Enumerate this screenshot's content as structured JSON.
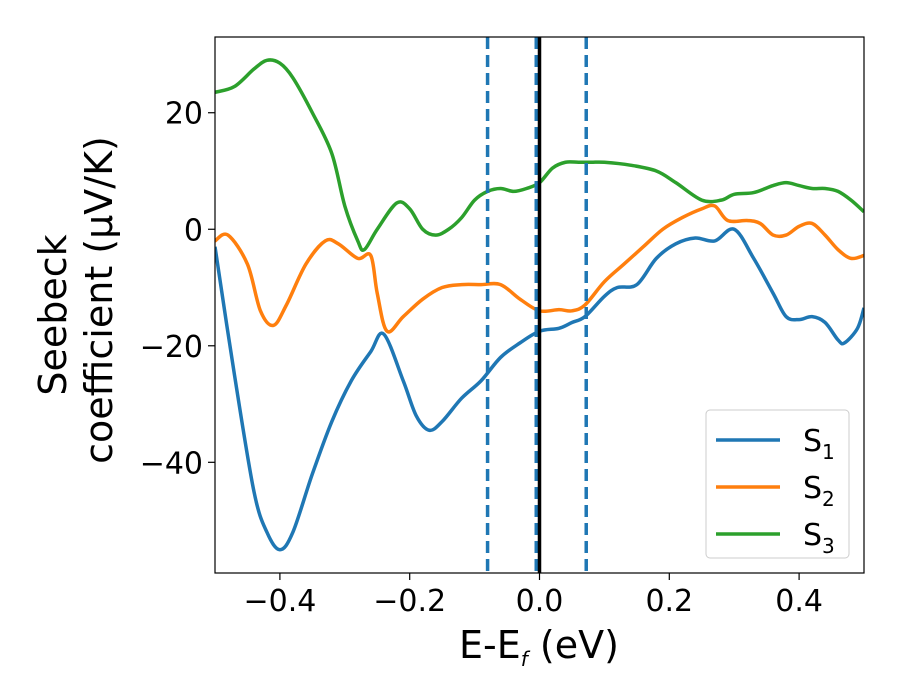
{
  "chart_data": {
    "type": "line",
    "xlabel_main": "E-E",
    "xlabel_sub": "f",
    "xlabel_tail": " (eV)",
    "ylabel_line1": "Seebeck",
    "ylabel_line2": "coefficient  (μV/K)",
    "xlim": [
      -0.5,
      0.5
    ],
    "ylim": [
      -59,
      33
    ],
    "xticks": [
      -0.4,
      -0.2,
      0.0,
      0.2,
      0.4
    ],
    "xtick_labels": [
      "−0.4",
      "−0.2",
      "0.0",
      "0.2",
      "0.4"
    ],
    "yticks": [
      20,
      0,
      -20,
      -40
    ],
    "ytick_labels": [
      "20",
      "0",
      "−20",
      "−40"
    ],
    "vlines": [
      {
        "x": -0.08,
        "style": "dashed",
        "color": "#1f77b4"
      },
      {
        "x": -0.005,
        "style": "dashed",
        "color": "#1f77b4"
      },
      {
        "x": 0.0,
        "style": "solid",
        "color": "#000000"
      },
      {
        "x": 0.072,
        "style": "dashed",
        "color": "#1f77b4"
      }
    ],
    "legend_position": "lower-right",
    "series": [
      {
        "name": "S",
        "sub": "1",
        "color": "#1f77b4",
        "points": [
          [
            -0.5,
            -3
          ],
          [
            -0.47,
            -25
          ],
          [
            -0.44,
            -45
          ],
          [
            -0.42,
            -52
          ],
          [
            -0.4,
            -55
          ],
          [
            -0.38,
            -52
          ],
          [
            -0.35,
            -42
          ],
          [
            -0.32,
            -33
          ],
          [
            -0.29,
            -26
          ],
          [
            -0.26,
            -21
          ],
          [
            -0.24,
            -18
          ],
          [
            -0.21,
            -26
          ],
          [
            -0.19,
            -32
          ],
          [
            -0.17,
            -34.5
          ],
          [
            -0.15,
            -33
          ],
          [
            -0.12,
            -29
          ],
          [
            -0.09,
            -26
          ],
          [
            -0.06,
            -22
          ],
          [
            -0.03,
            -19.5
          ],
          [
            0.0,
            -17.5
          ],
          [
            0.03,
            -17
          ],
          [
            0.05,
            -16
          ],
          [
            0.07,
            -15
          ],
          [
            0.1,
            -11.5
          ],
          [
            0.12,
            -10
          ],
          [
            0.15,
            -9.5
          ],
          [
            0.18,
            -5
          ],
          [
            0.21,
            -2.5
          ],
          [
            0.24,
            -1.5
          ],
          [
            0.27,
            -2
          ],
          [
            0.3,
            0
          ],
          [
            0.33,
            -5
          ],
          [
            0.36,
            -11
          ],
          [
            0.38,
            -15
          ],
          [
            0.4,
            -15.5
          ],
          [
            0.42,
            -15
          ],
          [
            0.44,
            -16
          ],
          [
            0.46,
            -19
          ],
          [
            0.47,
            -19.5
          ],
          [
            0.49,
            -17
          ],
          [
            0.5,
            -13.5
          ]
        ]
      },
      {
        "name": "S",
        "sub": "2",
        "color": "#ff7f0e",
        "points": [
          [
            -0.5,
            -2
          ],
          [
            -0.48,
            -1
          ],
          [
            -0.45,
            -6
          ],
          [
            -0.43,
            -14
          ],
          [
            -0.41,
            -16.5
          ],
          [
            -0.39,
            -13
          ],
          [
            -0.36,
            -6
          ],
          [
            -0.33,
            -2
          ],
          [
            -0.31,
            -2.5
          ],
          [
            -0.28,
            -5
          ],
          [
            -0.26,
            -4.5
          ],
          [
            -0.25,
            -11
          ],
          [
            -0.235,
            -17.5
          ],
          [
            -0.21,
            -15
          ],
          [
            -0.18,
            -12
          ],
          [
            -0.15,
            -10
          ],
          [
            -0.12,
            -9.5
          ],
          [
            -0.09,
            -9.5
          ],
          [
            -0.06,
            -9.5
          ],
          [
            -0.03,
            -12
          ],
          [
            0.0,
            -14
          ],
          [
            0.03,
            -13.8
          ],
          [
            0.05,
            -14
          ],
          [
            0.07,
            -13
          ],
          [
            0.1,
            -9
          ],
          [
            0.13,
            -6
          ],
          [
            0.16,
            -3
          ],
          [
            0.19,
            0
          ],
          [
            0.22,
            2
          ],
          [
            0.25,
            3.5
          ],
          [
            0.27,
            4
          ],
          [
            0.29,
            1.5
          ],
          [
            0.32,
            1.5
          ],
          [
            0.34,
            1
          ],
          [
            0.36,
            -1
          ],
          [
            0.38,
            -1
          ],
          [
            0.4,
            0.5
          ],
          [
            0.42,
            1
          ],
          [
            0.44,
            -1
          ],
          [
            0.46,
            -3.5
          ],
          [
            0.48,
            -5
          ],
          [
            0.5,
            -4.5
          ]
        ]
      },
      {
        "name": "S",
        "sub": "3",
        "color": "#2ca02c",
        "points": [
          [
            -0.5,
            23.5
          ],
          [
            -0.47,
            24.5
          ],
          [
            -0.44,
            27.5
          ],
          [
            -0.42,
            29
          ],
          [
            -0.4,
            28.5
          ],
          [
            -0.38,
            26
          ],
          [
            -0.35,
            20
          ],
          [
            -0.32,
            13
          ],
          [
            -0.3,
            4
          ],
          [
            -0.28,
            -2
          ],
          [
            -0.27,
            -3.5
          ],
          [
            -0.25,
            0
          ],
          [
            -0.22,
            4.5
          ],
          [
            -0.2,
            3.5
          ],
          [
            -0.18,
            0
          ],
          [
            -0.16,
            -1
          ],
          [
            -0.14,
            0
          ],
          [
            -0.12,
            2
          ],
          [
            -0.1,
            5
          ],
          [
            -0.08,
            6.5
          ],
          [
            -0.06,
            7
          ],
          [
            -0.04,
            6.5
          ],
          [
            -0.02,
            7
          ],
          [
            0.0,
            8
          ],
          [
            0.02,
            10.5
          ],
          [
            0.04,
            11.5
          ],
          [
            0.06,
            11.5
          ],
          [
            0.08,
            11.5
          ],
          [
            0.1,
            11.5
          ],
          [
            0.14,
            11
          ],
          [
            0.18,
            10
          ],
          [
            0.21,
            8
          ],
          [
            0.25,
            5
          ],
          [
            0.28,
            5
          ],
          [
            0.3,
            6
          ],
          [
            0.33,
            6.3
          ],
          [
            0.36,
            7.5
          ],
          [
            0.38,
            8
          ],
          [
            0.4,
            7.5
          ],
          [
            0.42,
            7
          ],
          [
            0.44,
            7
          ],
          [
            0.46,
            6.5
          ],
          [
            0.48,
            5
          ],
          [
            0.5,
            3
          ]
        ]
      }
    ]
  }
}
